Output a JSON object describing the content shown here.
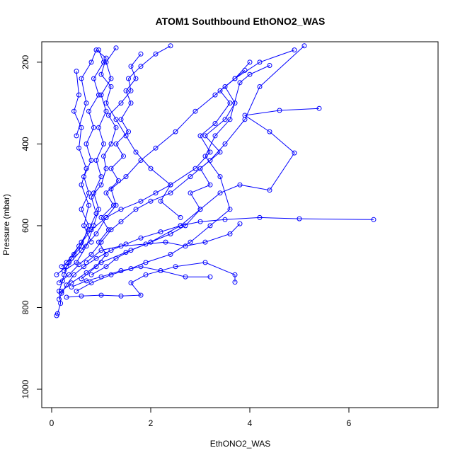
{
  "chart_data": {
    "type": "line",
    "title": "ATOM1 Southbound EthONO2_WAS",
    "xlabel": "EthONO2_WAS",
    "ylabel": "Pressure (mbar)",
    "xlim": [
      -0.2,
      7.8
    ],
    "ylim": [
      1045,
      150
    ],
    "y_axis_inverted": true,
    "xticks": [
      0,
      2,
      4,
      6
    ],
    "yticks": [
      200,
      400,
      600,
      800,
      1000
    ],
    "grid": false,
    "legend": "none",
    "colors": {
      "series": "#0000ff",
      "axes": "#000000",
      "background": "#ffffff"
    },
    "series": [
      {
        "points": [
          [
            0.1,
            820
          ],
          [
            0.12,
            815
          ],
          [
            0.18,
            790
          ],
          [
            0.15,
            760
          ],
          [
            0.22,
            735
          ],
          [
            0.25,
            720
          ],
          [
            0.3,
            700
          ],
          [
            0.35,
            690
          ],
          [
            0.45,
            670
          ],
          [
            0.6,
            640
          ],
          [
            0.75,
            610
          ],
          [
            0.9,
            570
          ],
          [
            0.8,
            530
          ],
          [
            1.0,
            500
          ],
          [
            1.1,
            460
          ],
          [
            1.05,
            430
          ],
          [
            1.2,
            400
          ],
          [
            1.3,
            360
          ],
          [
            1.15,
            330
          ],
          [
            1.4,
            300
          ],
          [
            1.6,
            270
          ],
          [
            1.55,
            240
          ],
          [
            1.8,
            210
          ],
          [
            2.1,
            180
          ],
          [
            2.4,
            160
          ]
        ]
      },
      {
        "points": [
          [
            0.15,
            780
          ],
          [
            0.2,
            765
          ],
          [
            0.3,
            745
          ],
          [
            0.45,
            720
          ],
          [
            0.65,
            700
          ],
          [
            0.9,
            680
          ],
          [
            1.2,
            660
          ],
          [
            1.5,
            645
          ],
          [
            1.8,
            630
          ],
          [
            2.2,
            615
          ],
          [
            2.6,
            600
          ],
          [
            3.0,
            590
          ],
          [
            3.5,
            585
          ],
          [
            4.2,
            580
          ],
          [
            5.0,
            583
          ],
          [
            6.5,
            585
          ]
        ]
      },
      {
        "points": [
          [
            0.2,
            760
          ],
          [
            0.4,
            740
          ],
          [
            0.7,
            715
          ],
          [
            1.0,
            690
          ],
          [
            1.5,
            665
          ],
          [
            2.0,
            640
          ],
          [
            2.6,
            600
          ],
          [
            3.0,
            560
          ],
          [
            3.4,
            520
          ],
          [
            3.8,
            500
          ],
          [
            4.4,
            513
          ],
          [
            4.9,
            422
          ],
          [
            4.4,
            370
          ],
          [
            3.9,
            330
          ],
          [
            4.6,
            318
          ],
          [
            5.4,
            313
          ]
        ]
      },
      {
        "points": [
          [
            0.5,
            760
          ],
          [
            0.8,
            740
          ],
          [
            1.2,
            720
          ],
          [
            1.6,
            705
          ],
          [
            1.9,
            690
          ],
          [
            2.4,
            670
          ],
          [
            2.8,
            640
          ],
          [
            3.2,
            600
          ],
          [
            3.6,
            560
          ],
          [
            3.4,
            480
          ],
          [
            3.1,
            430
          ],
          [
            3.3,
            380
          ],
          [
            3.6,
            340
          ],
          [
            3.8,
            250
          ],
          [
            4.0,
            230
          ],
          [
            4.4,
            208
          ]
        ]
      },
      {
        "points": [
          [
            0.1,
            720
          ],
          [
            0.3,
            700
          ],
          [
            0.6,
            660
          ],
          [
            0.9,
            620
          ],
          [
            1.1,
            580
          ],
          [
            1.3,
            550
          ],
          [
            1.2,
            510
          ],
          [
            1.5,
            480
          ],
          [
            1.8,
            440
          ],
          [
            2.1,
            410
          ],
          [
            2.5,
            370
          ],
          [
            2.9,
            320
          ],
          [
            3.3,
            280
          ],
          [
            3.7,
            240
          ],
          [
            4.2,
            200
          ],
          [
            4.9,
            170
          ]
        ]
      },
      {
        "points": [
          [
            0.3,
            775
          ],
          [
            0.6,
            772
          ],
          [
            1.0,
            770
          ],
          [
            1.4,
            772
          ],
          [
            1.8,
            770
          ],
          [
            1.6,
            740
          ],
          [
            1.9,
            720
          ],
          [
            2.5,
            700
          ],
          [
            3.1,
            690
          ],
          [
            3.7,
            720
          ],
          [
            3.7,
            738
          ]
        ]
      },
      {
        "points": [
          [
            0.15,
            740
          ],
          [
            0.35,
            720
          ],
          [
            0.55,
            695
          ],
          [
            0.8,
            670
          ],
          [
            1.0,
            640
          ],
          [
            1.2,
            610
          ],
          [
            1.4,
            590
          ],
          [
            1.7,
            560
          ],
          [
            2.0,
            540
          ],
          [
            2.4,
            520
          ],
          [
            2.8,
            480
          ],
          [
            3.2,
            440
          ],
          [
            3.5,
            400
          ],
          [
            3.9,
            340
          ],
          [
            4.2,
            260
          ],
          [
            5.1,
            160
          ]
        ]
      },
      {
        "points": [
          [
            0.6,
            730
          ],
          [
            0.9,
            700
          ],
          [
            1.1,
            670
          ],
          [
            0.95,
            640
          ],
          [
            1.15,
            610
          ],
          [
            1.0,
            580
          ],
          [
            1.25,
            550
          ],
          [
            1.1,
            520
          ],
          [
            1.35,
            490
          ],
          [
            1.2,
            460
          ],
          [
            1.45,
            430
          ],
          [
            1.3,
            400
          ],
          [
            1.55,
            370
          ],
          [
            1.4,
            340
          ],
          [
            1.6,
            300
          ],
          [
            1.5,
            270
          ],
          [
            1.7,
            240
          ],
          [
            1.6,
            210
          ],
          [
            1.8,
            180
          ]
        ]
      },
      {
        "points": [
          [
            0.7,
            690
          ],
          [
            1.0,
            660
          ],
          [
            1.4,
            650
          ],
          [
            1.9,
            645
          ],
          [
            2.3,
            640
          ],
          [
            2.7,
            650
          ],
          [
            3.1,
            640
          ],
          [
            3.6,
            620
          ],
          [
            3.8,
            595
          ]
        ]
      },
      {
        "points": [
          [
            0.25,
            710
          ],
          [
            0.5,
            690
          ],
          [
            0.7,
            650
          ],
          [
            0.85,
            600
          ],
          [
            0.95,
            560
          ],
          [
            0.85,
            520
          ],
          [
            1.0,
            480
          ],
          [
            0.9,
            440
          ],
          [
            1.05,
            400
          ],
          [
            0.95,
            360
          ],
          [
            1.1,
            320
          ],
          [
            1.0,
            280
          ],
          [
            1.2,
            240
          ],
          [
            1.1,
            200
          ],
          [
            1.3,
            165
          ]
        ]
      },
      {
        "points": [
          [
            0.4,
            750
          ],
          [
            0.7,
            735
          ],
          [
            1.0,
            725
          ],
          [
            1.4,
            710
          ],
          [
            1.8,
            700
          ],
          [
            2.2,
            710
          ],
          [
            2.7,
            725
          ],
          [
            3.2,
            725
          ]
        ]
      },
      {
        "points": [
          [
            0.2,
            700
          ],
          [
            0.4,
            680
          ],
          [
            0.6,
            650
          ],
          [
            0.75,
            600
          ],
          [
            0.6,
            560
          ],
          [
            0.75,
            520
          ],
          [
            0.65,
            480
          ],
          [
            0.8,
            440
          ],
          [
            0.7,
            400
          ],
          [
            0.85,
            360
          ],
          [
            0.75,
            320
          ],
          [
            0.95,
            280
          ],
          [
            0.85,
            240
          ],
          [
            1.05,
            200
          ],
          [
            0.95,
            170
          ]
        ]
      },
      {
        "points": [
          [
            0.3,
            690
          ],
          [
            0.55,
            650
          ],
          [
            0.8,
            610
          ],
          [
            1.1,
            580
          ],
          [
            1.4,
            560
          ],
          [
            1.8,
            540
          ],
          [
            2.1,
            520
          ],
          [
            2.4,
            500
          ],
          [
            2.9,
            460
          ],
          [
            3.2,
            420
          ],
          [
            3.0,
            380
          ],
          [
            3.3,
            350
          ],
          [
            3.6,
            300
          ],
          [
            3.4,
            270
          ],
          [
            3.7,
            240
          ],
          [
            4.0,
            200
          ]
        ]
      },
      {
        "points": [
          [
            0.8,
            720
          ],
          [
            1.1,
            700
          ],
          [
            1.3,
            680
          ],
          [
            1.6,
            660
          ],
          [
            2.0,
            640
          ],
          [
            2.4,
            620
          ],
          [
            2.7,
            600
          ],
          [
            3.0,
            560
          ],
          [
            2.8,
            520
          ],
          [
            3.2,
            500
          ],
          [
            3.0,
            460
          ],
          [
            3.4,
            420
          ],
          [
            3.1,
            380
          ],
          [
            3.5,
            340
          ],
          [
            3.7,
            300
          ],
          [
            3.5,
            260
          ],
          [
            3.9,
            220
          ]
        ]
      },
      {
        "points": [
          [
            0.5,
            380
          ],
          [
            0.7,
            300
          ],
          [
            0.6,
            240
          ],
          [
            0.8,
            200
          ],
          [
            0.9,
            170
          ],
          [
            1.1,
            190
          ],
          [
            1.0,
            230
          ],
          [
            1.2,
            260
          ],
          [
            1.1,
            300
          ],
          [
            1.3,
            340
          ],
          [
            1.5,
            380
          ],
          [
            1.7,
            420
          ],
          [
            2.0,
            460
          ],
          [
            2.4,
            500
          ],
          [
            2.2,
            540
          ],
          [
            2.6,
            580
          ]
        ]
      },
      {
        "points": [
          [
            0.5,
            222
          ],
          [
            0.55,
            280
          ],
          [
            0.45,
            320
          ],
          [
            0.6,
            360
          ],
          [
            0.55,
            410
          ],
          [
            0.7,
            460
          ],
          [
            0.6,
            500
          ],
          [
            0.75,
            550
          ],
          [
            0.65,
            600
          ],
          [
            0.8,
            640
          ]
        ]
      }
    ]
  }
}
